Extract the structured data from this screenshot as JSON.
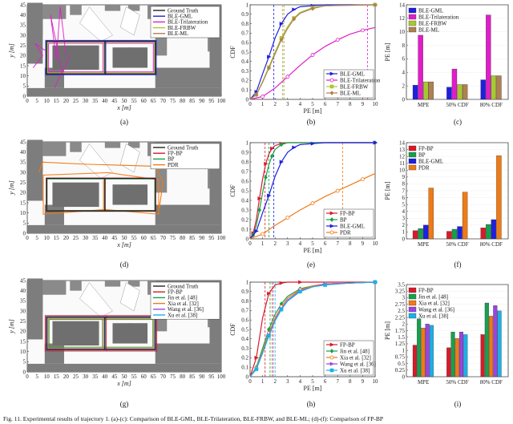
{
  "figure": {
    "caption": "Fig. 11. Experimental results of trajectory 1. (a)-(c): Comparison of BLE-GML, BLE-Trilateration, BLE-FRBW, and BLE-ML; (d)-(f): Comparison of FP-BP"
  },
  "panels": {
    "a": {
      "label": "(a)",
      "xlabel": "x [m]",
      "ylabel": "y [m]"
    },
    "b": {
      "label": "(b)",
      "xlabel": "PE [m]",
      "ylabel": "CDF"
    },
    "c": {
      "label": "(c)",
      "ylabel": "PE [m]"
    },
    "d": {
      "label": "(d)",
      "xlabel": "x [m]",
      "ylabel": "y [m]"
    },
    "e": {
      "label": "(e)",
      "xlabel": "PE [m]",
      "ylabel": "CDF"
    },
    "f": {
      "label": "(f)",
      "ylabel": "PE [m]"
    },
    "g": {
      "label": "(g)",
      "xlabel": "x [m]",
      "ylabel": "y [m]"
    },
    "h": {
      "label": "(h)",
      "xlabel": "PE [m]",
      "ylabel": "CDF"
    },
    "i": {
      "label": "(i)",
      "ylabel": "PE [m]"
    }
  },
  "colors": {
    "BLE-GML": "#1f1fe0",
    "BLE-Trilateration": "#e01ec8",
    "BLE-FRBW": "#a8c832",
    "BLE-ML": "#b08050",
    "FP-BP": "#d81a2a",
    "BP": "#16a04a",
    "PDR": "#f07a14",
    "Jin": "#17a050",
    "Xia": "#f07a14",
    "Wang": "#9a44e0",
    "Xu": "#1cb0e8",
    "GT": "#222222"
  },
  "chart_data": [
    {
      "id": "a",
      "type": "scatter",
      "xlabel": "x [m]",
      "ylabel": "y [m]",
      "xlim": [
        0,
        100
      ],
      "ylim": [
        0,
        45
      ],
      "xticks": [
        0,
        5,
        10,
        15,
        20,
        25,
        30,
        35,
        40,
        45,
        50,
        55,
        60,
        65,
        70,
        75,
        80,
        85,
        90,
        95,
        100
      ],
      "yticks": [
        0,
        5,
        10,
        15,
        20,
        25,
        30,
        35,
        40,
        45
      ],
      "legend": [
        "Ground Truth",
        "BLE-GML",
        "BLE-Trilateration",
        "BLE-FRBW",
        "BLE-ML"
      ],
      "legend_loc": "top-right"
    },
    {
      "id": "b",
      "type": "line",
      "xlabel": "PE [m]",
      "ylabel": "CDF",
      "xlim": [
        0,
        10
      ],
      "ylim": [
        0,
        1
      ],
      "xticks": [
        0,
        1,
        2,
        3,
        4,
        5,
        6,
        7,
        8,
        9,
        10
      ],
      "yticks": [
        0,
        0.1,
        0.2,
        0.3,
        0.4,
        0.5,
        0.6,
        0.7,
        0.8,
        0.9,
        1
      ],
      "legend_loc": "bottom-right",
      "series": [
        {
          "name": "BLE-GML",
          "medians": 1.9,
          "x": [
            0,
            0.5,
            1,
            1.5,
            2,
            2.5,
            3,
            3.5,
            4,
            5,
            6,
            10
          ],
          "y": [
            0,
            0.08,
            0.27,
            0.45,
            0.65,
            0.8,
            0.9,
            0.95,
            0.98,
            0.99,
            1,
            1
          ]
        },
        {
          "name": "BLE-Trilateration",
          "x": [
            0,
            1,
            2,
            3,
            4,
            5,
            6,
            7,
            8,
            9,
            10
          ],
          "y": [
            0,
            0.03,
            0.12,
            0.24,
            0.36,
            0.47,
            0.56,
            0.63,
            0.69,
            0.73,
            0.76
          ]
        },
        {
          "name": "BLE-FRBW",
          "x": [
            0,
            0.5,
            1,
            1.5,
            2,
            2.5,
            3,
            3.5,
            4,
            5,
            6,
            10
          ],
          "y": [
            0,
            0.05,
            0.19,
            0.34,
            0.5,
            0.65,
            0.77,
            0.86,
            0.92,
            0.97,
            0.99,
            1
          ]
        },
        {
          "name": "BLE-ML",
          "x": [
            0,
            0.5,
            1,
            1.5,
            2,
            2.5,
            3,
            3.5,
            4,
            5,
            6,
            10
          ],
          "y": [
            0,
            0.05,
            0.18,
            0.33,
            0.48,
            0.63,
            0.75,
            0.85,
            0.91,
            0.96,
            0.99,
            1
          ]
        }
      ],
      "vlines": [
        {
          "series": "BLE-GML",
          "x": 1.9
        },
        {
          "series": "BLE-FRBW",
          "x": 2.6
        },
        {
          "series": "BLE-ML",
          "x": 2.7
        },
        {
          "series": "BLE-Trilateration",
          "x": 9.4
        }
      ]
    },
    {
      "id": "c",
      "type": "bar",
      "ylabel": "PE [m]",
      "ylim": [
        0,
        14
      ],
      "yticks": [
        0,
        2,
        4,
        6,
        8,
        10,
        12,
        14
      ],
      "categories": [
        "MPE",
        "50% CDF",
        "80% CDF"
      ],
      "legend_loc": "top-left",
      "series": [
        {
          "name": "BLE-GML",
          "values": [
            2.1,
            1.8,
            2.9
          ]
        },
        {
          "name": "BLE-Trilateration",
          "values": [
            9.5,
            4.5,
            12.5
          ]
        },
        {
          "name": "BLE-FRBW",
          "values": [
            2.6,
            2.2,
            3.5
          ]
        },
        {
          "name": "BLE-ML",
          "values": [
            2.6,
            2.2,
            3.5
          ]
        }
      ]
    },
    {
      "id": "d",
      "type": "scatter",
      "xlabel": "x [m]",
      "ylabel": "y [m]",
      "xlim": [
        0,
        100
      ],
      "ylim": [
        0,
        45
      ],
      "xticks": [
        0,
        5,
        10,
        15,
        20,
        25,
        30,
        35,
        40,
        45,
        50,
        55,
        60,
        65,
        70,
        75,
        80,
        85,
        90,
        95,
        100
      ],
      "yticks": [
        0,
        5,
        10,
        15,
        20,
        25,
        30,
        35,
        40,
        45
      ],
      "legend": [
        "Ground Truth",
        "FP-BP",
        "BP",
        "PDR"
      ],
      "legend_loc": "top-right"
    },
    {
      "id": "e",
      "type": "line",
      "xlabel": "PE [m]",
      "ylabel": "CDF",
      "xlim": [
        0,
        10
      ],
      "ylim": [
        0,
        1
      ],
      "xticks": [
        0,
        1,
        2,
        3,
        4,
        5,
        6,
        7,
        8,
        9,
        10
      ],
      "yticks": [
        0,
        0.1,
        0.2,
        0.3,
        0.4,
        0.5,
        0.6,
        0.7,
        0.8,
        0.9,
        1
      ],
      "legend_loc": "bottom-right",
      "series": [
        {
          "name": "FP-BP",
          "x": [
            0,
            0.25,
            0.5,
            0.75,
            1,
            1.25,
            1.5,
            1.75,
            2,
            2.5,
            3,
            10
          ],
          "y": [
            0,
            0.06,
            0.2,
            0.42,
            0.62,
            0.78,
            0.88,
            0.94,
            0.97,
            0.99,
            1,
            1
          ]
        },
        {
          "name": "BP",
          "x": [
            0,
            0.25,
            0.5,
            0.75,
            1,
            1.25,
            1.5,
            1.75,
            2,
            2.5,
            3,
            10
          ],
          "y": [
            0,
            0.04,
            0.14,
            0.3,
            0.48,
            0.64,
            0.77,
            0.86,
            0.93,
            0.98,
            1,
            1
          ]
        },
        {
          "name": "BLE-GML",
          "x": [
            0,
            0.5,
            1,
            1.5,
            2,
            2.5,
            3,
            3.5,
            4,
            5,
            6,
            10
          ],
          "y": [
            0,
            0.08,
            0.27,
            0.45,
            0.65,
            0.8,
            0.9,
            0.95,
            0.98,
            0.99,
            1,
            1
          ]
        },
        {
          "name": "PDR",
          "x": [
            0,
            1,
            2,
            3,
            4,
            5,
            6,
            7,
            8,
            9,
            10
          ],
          "y": [
            0,
            0.05,
            0.14,
            0.22,
            0.3,
            0.37,
            0.44,
            0.5,
            0.56,
            0.62,
            0.68
          ]
        }
      ],
      "vlines": [
        {
          "series": "FP-BP",
          "x": 1.2
        },
        {
          "series": "BP",
          "x": 1.5
        },
        {
          "series": "BLE-GML",
          "x": 1.9
        },
        {
          "series": "PDR",
          "x": 7.4
        }
      ]
    },
    {
      "id": "f",
      "type": "bar",
      "ylabel": "PE [m]",
      "ylim": [
        0,
        14
      ],
      "yticks": [
        0,
        1,
        2,
        3,
        4,
        5,
        6,
        7,
        8,
        9,
        10,
        11,
        12,
        13,
        14
      ],
      "categories": [
        "MPE",
        "50% CDF",
        "80% CDF"
      ],
      "legend_loc": "top-left",
      "series": [
        {
          "name": "FP-BP",
          "values": [
            1.2,
            1.1,
            1.6
          ]
        },
        {
          "name": "BP",
          "values": [
            1.5,
            1.4,
            2.1
          ]
        },
        {
          "name": "BLE-GML",
          "values": [
            2.0,
            1.8,
            2.8
          ]
        },
        {
          "name": "PDR",
          "values": [
            7.4,
            6.8,
            12.1
          ]
        }
      ]
    },
    {
      "id": "g",
      "type": "scatter",
      "xlabel": "x [m]",
      "ylabel": "y [m]",
      "xlim": [
        0,
        100
      ],
      "ylim": [
        0,
        45
      ],
      "xticks": [
        0,
        5,
        10,
        15,
        20,
        25,
        30,
        35,
        40,
        45,
        50,
        55,
        60,
        65,
        70,
        75,
        80,
        85,
        90,
        95,
        100
      ],
      "yticks": [
        0,
        5,
        10,
        15,
        20,
        25,
        30,
        35,
        40,
        45
      ],
      "legend": [
        "Ground Truth",
        "FP-BP",
        "Jin et al. [48]",
        "Xia et al. [32]",
        "Wang et al. [36]",
        "Xu et al. [38]"
      ],
      "legend_loc": "top-right"
    },
    {
      "id": "h",
      "type": "line",
      "xlabel": "PE [m]",
      "ylabel": "CDF",
      "xlim": [
        0,
        10
      ],
      "ylim": [
        0,
        1
      ],
      "xticks": [
        0,
        1,
        2,
        3,
        4,
        5,
        6,
        7,
        8,
        9,
        10
      ],
      "yticks": [
        0,
        0.1,
        0.2,
        0.3,
        0.4,
        0.5,
        0.6,
        0.7,
        0.8,
        0.9,
        1
      ],
      "legend_loc": "bottom-right",
      "series": [
        {
          "name": "FP-BP",
          "x": [
            0,
            0.5,
            1,
            1.5,
            2,
            2.5,
            3,
            4,
            5,
            10
          ],
          "y": [
            0,
            0.2,
            0.62,
            0.88,
            0.97,
            0.99,
            1,
            1,
            1,
            1
          ]
        },
        {
          "name": "Jin et al. [48]",
          "x": [
            0,
            0.5,
            1,
            1.5,
            2,
            2.5,
            3,
            4,
            5,
            6,
            8,
            10
          ],
          "y": [
            0,
            0.1,
            0.3,
            0.5,
            0.66,
            0.77,
            0.85,
            0.93,
            0.96,
            0.98,
            0.99,
            1
          ]
        },
        {
          "name": "Xia et al. [32]",
          "x": [
            0,
            0.5,
            1,
            1.5,
            2,
            2.5,
            3,
            4,
            5,
            6,
            8,
            10
          ],
          "y": [
            0,
            0.09,
            0.27,
            0.46,
            0.62,
            0.74,
            0.83,
            0.92,
            0.96,
            0.98,
            0.99,
            1
          ]
        },
        {
          "name": "Wang et al. [36]",
          "x": [
            0,
            0.5,
            1,
            1.5,
            2,
            2.5,
            3,
            4,
            5,
            6,
            8,
            10
          ],
          "y": [
            0,
            0.08,
            0.25,
            0.44,
            0.6,
            0.72,
            0.81,
            0.91,
            0.95,
            0.98,
            0.99,
            1
          ]
        },
        {
          "name": "Xu et al. [38]",
          "x": [
            0,
            0.5,
            1,
            1.5,
            2,
            2.5,
            3,
            4,
            5,
            6,
            8,
            10
          ],
          "y": [
            0,
            0.08,
            0.25,
            0.43,
            0.59,
            0.71,
            0.8,
            0.9,
            0.95,
            0.97,
            0.99,
            1
          ]
        }
      ],
      "vlines": [
        {
          "series": "FP-BP",
          "x": 1.2
        },
        {
          "series": "Jin et al. [48]",
          "x": 1.6
        },
        {
          "series": "Xia et al. [32]",
          "x": 1.75
        },
        {
          "series": "Wang et al. [36]",
          "x": 1.85
        },
        {
          "series": "Xu et al. [38]",
          "x": 2.0
        }
      ]
    },
    {
      "id": "i",
      "type": "bar",
      "ylabel": "PE [m]",
      "ylim": [
        0,
        3.5
      ],
      "yticks": [
        0,
        0.25,
        0.5,
        0.75,
        1,
        1.25,
        1.5,
        1.75,
        2,
        2.25,
        2.5,
        2.75,
        3,
        3.25,
        3.5
      ],
      "yticklabels": [
        "0",
        "0.25",
        "0.5",
        "0.75",
        "1",
        "1.25",
        "1.5",
        "1.75",
        "2",
        "2.25",
        "2.5",
        "2.75",
        "3",
        "3.25",
        "3.5"
      ],
      "categories": [
        "MPE",
        "50% CDF",
        "80% CDF"
      ],
      "legend_loc": "top-left",
      "series": [
        {
          "name": "FP-BP",
          "values": [
            1.2,
            1.1,
            1.6
          ]
        },
        {
          "name": "Jin et al. [48]",
          "values": [
            2.2,
            1.7,
            2.8
          ]
        },
        {
          "name": "Xia et al. [32]",
          "values": [
            1.85,
            1.45,
            2.3
          ]
        },
        {
          "name": "Wang et al. [36]",
          "values": [
            2.0,
            1.7,
            2.7
          ]
        },
        {
          "name": "Xu et al. [38]",
          "values": [
            1.95,
            1.6,
            2.5
          ]
        }
      ]
    }
  ]
}
